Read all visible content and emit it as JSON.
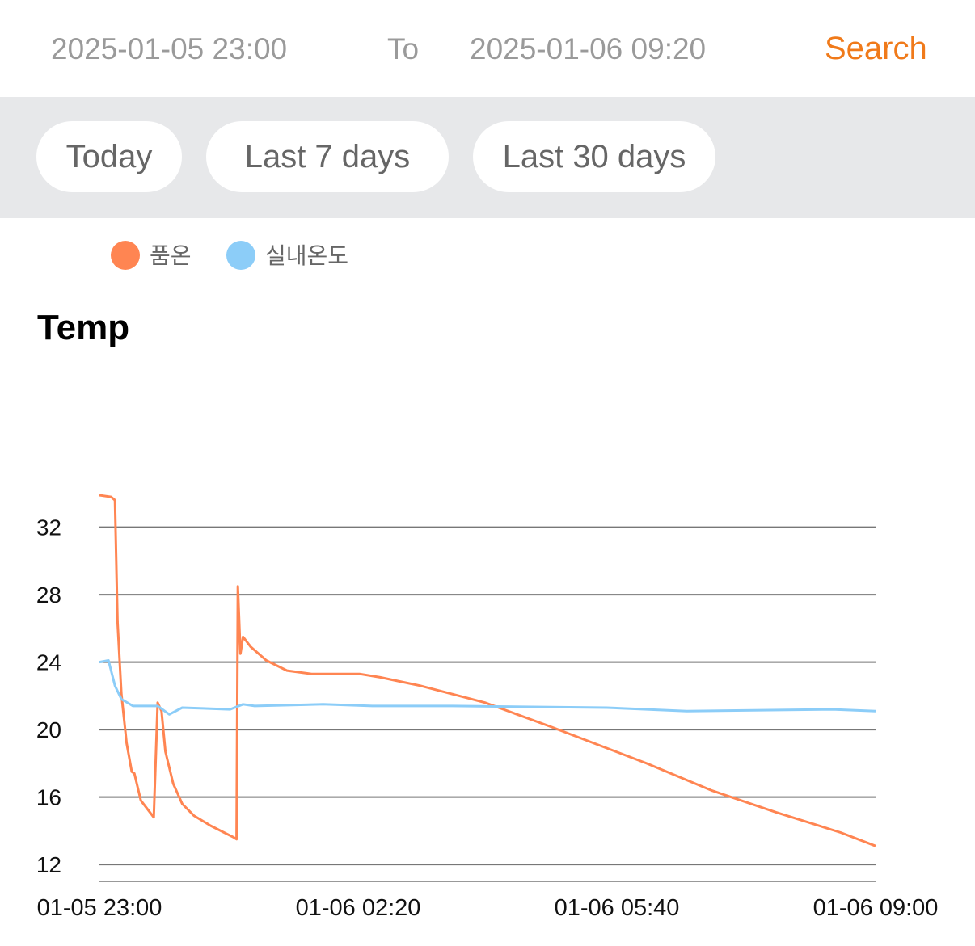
{
  "header": {
    "from": "2025-01-05 23:00",
    "to_label": "To",
    "to": "2025-01-06 09:20",
    "search": "Search"
  },
  "quick_ranges": [
    "Today",
    "Last 7 days",
    "Last 30 days"
  ],
  "chart_data": {
    "type": "line",
    "title": "Temp",
    "xlim": [
      "01-05 23:00",
      "01-06 09:00"
    ],
    "xticks": [
      "01-05 23:00",
      "01-06 02:20",
      "01-06 05:40",
      "01-06 09:00"
    ],
    "ylim": [
      11,
      35
    ],
    "yticks": [
      12,
      16,
      20,
      24,
      28,
      32
    ],
    "grid": true,
    "series": [
      {
        "name": "품온",
        "color": "#ff8552",
        "x": [
          "01-05 23:00",
          "01-05 23:09",
          "01-05 23:12",
          "01-05 23:14",
          "01-05 23:17",
          "01-05 23:21",
          "01-05 23:25",
          "01-05 23:27",
          "01-05 23:32",
          "01-05 23:42",
          "01-05 23:45",
          "01-05 23:48",
          "01-05 23:51",
          "01-05 23:57",
          "01-06 00:04",
          "01-06 00:13",
          "01-06 00:26",
          "01-06 00:44",
          "01-06 00:46",
          "01-06 00:47",
          "01-06 00:49",
          "01-06 00:51",
          "01-06 00:57",
          "01-06 01:09",
          "01-06 01:25",
          "01-06 01:44",
          "01-06 02:21",
          "01-06 02:37",
          "01-06 03:08",
          "01-06 03:58",
          "01-06 04:48",
          "01-06 06:03",
          "01-06 06:53",
          "01-06 07:43",
          "01-06 08:33",
          "01-06 09:00"
        ],
        "values": [
          33.9,
          33.8,
          33.6,
          26.4,
          22.1,
          19.2,
          17.5,
          17.4,
          15.8,
          14.8,
          21.6,
          21.1,
          18.7,
          16.8,
          15.6,
          14.9,
          14.3,
          13.6,
          13.5,
          28.5,
          24.5,
          25.5,
          24.9,
          24.1,
          23.5,
          23.3,
          23.3,
          23.1,
          22.6,
          21.6,
          20.2,
          18.0,
          16.4,
          15.1,
          13.9,
          13.1
        ]
      },
      {
        "name": "실내온도",
        "color": "#8ccdf8",
        "x": [
          "01-05 23:00",
          "01-05 23:07",
          "01-05 23:12",
          "01-05 23:17",
          "01-05 23:26",
          "01-05 23:45",
          "01-05 23:54",
          "01-06 00:04",
          "01-06 00:41",
          "01-06 00:51",
          "01-06 01:00",
          "01-06 01:53",
          "01-06 02:31",
          "01-06 03:33",
          "01-06 05:32",
          "01-06 06:34",
          "01-06 08:27",
          "01-06 09:00"
        ],
        "values": [
          24.0,
          24.1,
          22.6,
          21.8,
          21.4,
          21.4,
          20.9,
          21.3,
          21.2,
          21.5,
          21.4,
          21.5,
          21.4,
          21.4,
          21.3,
          21.1,
          21.2,
          21.1
        ]
      }
    ]
  }
}
